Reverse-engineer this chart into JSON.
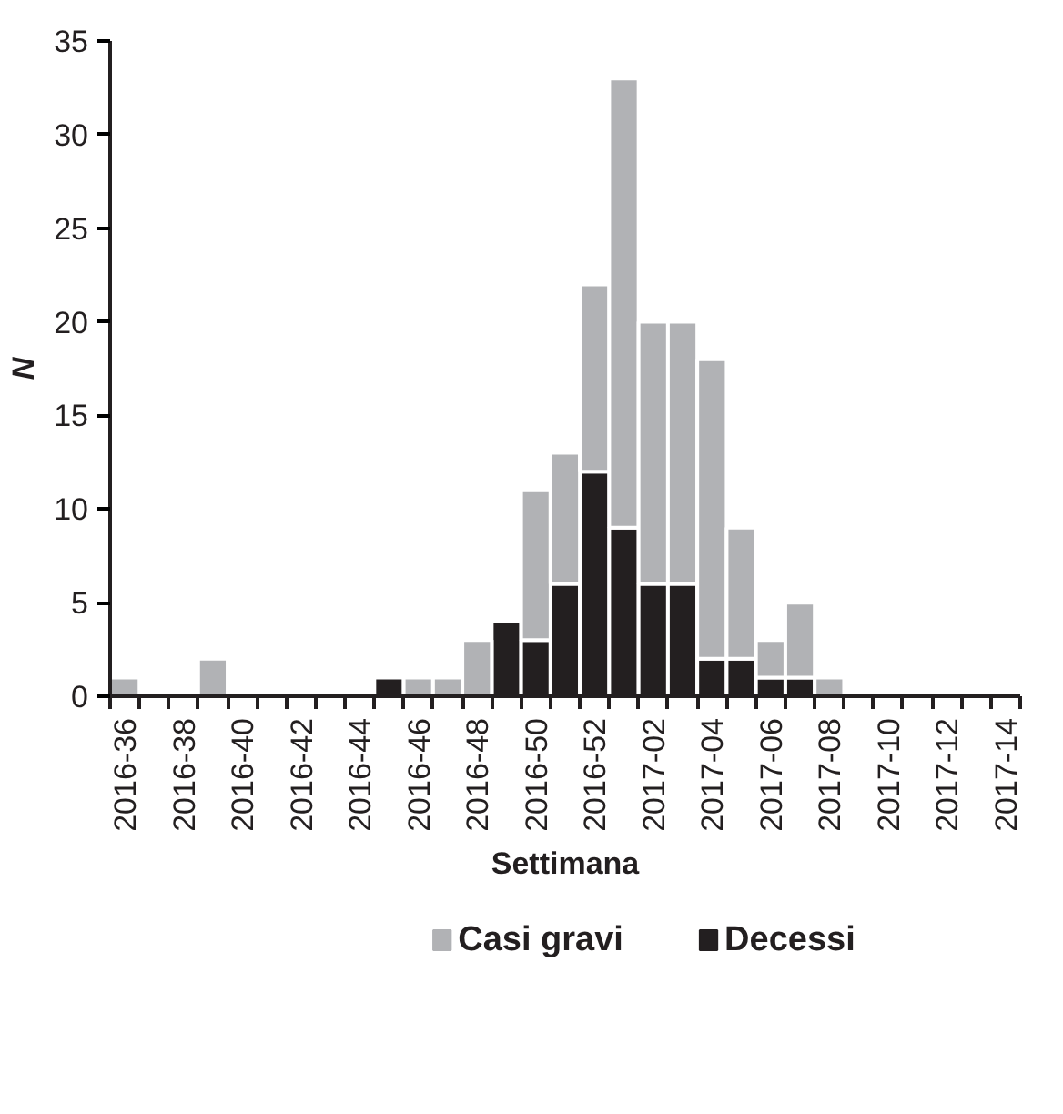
{
  "chart_data": {
    "type": "bar",
    "stacked": true,
    "xlabel": "Settimana",
    "ylabel": "N",
    "categories": [
      "2016-36",
      null,
      "2016-38",
      null,
      "2016-40",
      null,
      "2016-42",
      null,
      "2016-44",
      null,
      "2016-46",
      null,
      "2016-48",
      null,
      "2016-50",
      null,
      "2016-52",
      null,
      "2017-02",
      null,
      "2017-04",
      null,
      "2017-06",
      null,
      "2017-08",
      null,
      "2017-10",
      null,
      "2017-12",
      null,
      "2017-14"
    ],
    "series": [
      {
        "name": "Decessi",
        "color": "#231f20",
        "values": [
          0,
          0,
          0,
          0,
          0,
          0,
          0,
          0,
          0,
          1,
          0,
          0,
          0,
          4,
          3,
          6,
          12,
          9,
          6,
          6,
          2,
          2,
          1,
          1,
          0,
          0,
          0,
          0,
          0,
          0,
          0
        ]
      },
      {
        "name": "Casi gravi",
        "color": "#b1b2b5",
        "values": [
          1,
          0,
          0,
          2,
          0,
          0,
          0,
          0,
          0,
          0,
          1,
          1,
          3,
          0,
          8,
          7,
          10,
          24,
          14,
          14,
          16,
          7,
          2,
          4,
          1,
          0,
          0,
          0,
          0,
          0,
          0
        ]
      }
    ],
    "ylim": [
      0,
      35
    ],
    "yticks": [
      0,
      5,
      10,
      15,
      20,
      25,
      30,
      35
    ],
    "grid": false,
    "legend": "bottom"
  }
}
